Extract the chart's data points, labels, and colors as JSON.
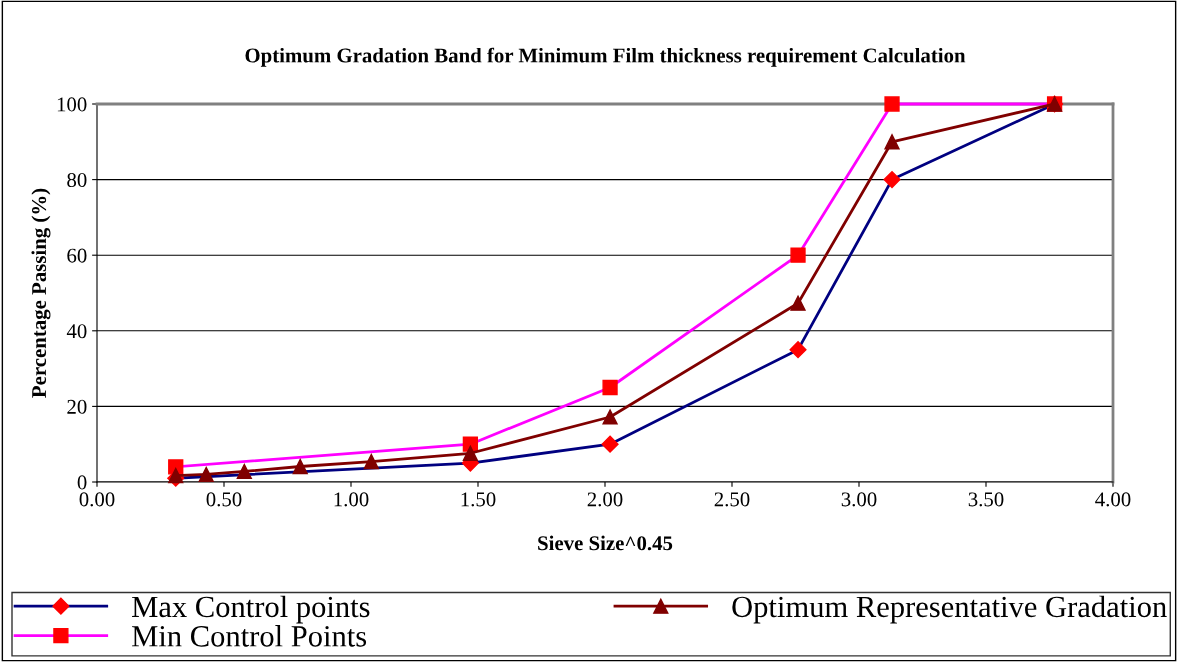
{
  "chart_data": {
    "type": "line",
    "title": "Optimum Gradation Band for Minimum Film thickness requirement Calculation",
    "xlabel": "Sieve Size^0.45",
    "ylabel": "Percentage Passing (%)",
    "series": [
      {
        "name": "Max Control points",
        "color": "#000080",
        "marker": "diamond",
        "x": [
          0.31,
          1.47,
          2.02,
          2.76,
          3.13,
          3.77
        ],
        "values": [
          1,
          5,
          10,
          35,
          80,
          100
        ]
      },
      {
        "name": "Min Control Points",
        "color": "#ff00ff",
        "marker": "square",
        "x": [
          0.31,
          1.47,
          2.02,
          2.76,
          3.13,
          3.77
        ],
        "values": [
          4,
          10,
          25,
          60,
          100,
          100
        ]
      },
      {
        "name": "Optimum Representative Gradation",
        "color": "#800000",
        "marker": "triangle",
        "x": [
          0.31,
          0.43,
          0.58,
          0.8,
          1.08,
          1.47,
          2.02,
          2.76,
          3.13,
          3.77
        ],
        "values": [
          1.7,
          2,
          2.8,
          4.1,
          5.4,
          7.6,
          17.2,
          47.3,
          90,
          100
        ]
      }
    ],
    "xlim": [
      0,
      4
    ],
    "xticks": [
      {
        "value": 0,
        "label": "0.00"
      },
      {
        "value": 0.5,
        "label": "0.50"
      },
      {
        "value": 1,
        "label": "1.00"
      },
      {
        "value": 1.5,
        "label": "1.50"
      },
      {
        "value": 2,
        "label": "2.00"
      },
      {
        "value": 2.5,
        "label": "2.50"
      },
      {
        "value": 3,
        "label": "3.00"
      },
      {
        "value": 3.5,
        "label": "3.50"
      },
      {
        "value": 4,
        "label": "4.00"
      }
    ],
    "ylim": [
      0,
      100
    ],
    "yticks": [
      0,
      20,
      40,
      60,
      80,
      100
    ],
    "grid": "y",
    "legend": "bottom"
  }
}
